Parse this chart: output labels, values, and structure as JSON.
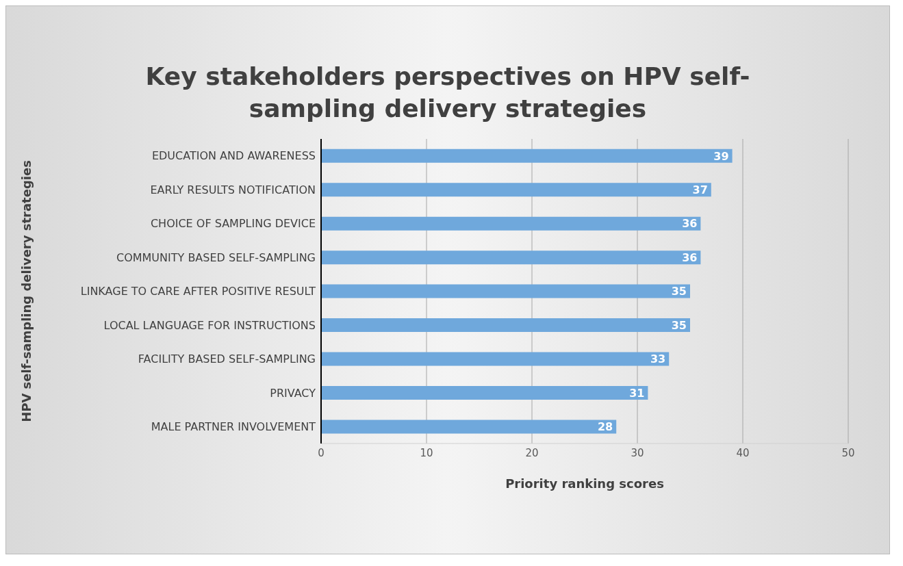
{
  "chart_data": {
    "type": "bar",
    "orientation": "horizontal",
    "title": "Key stakeholders perspectives on HPV self-sampling delivery strategies",
    "xlabel": "Priority ranking  scores",
    "ylabel": "HPV self-sampling delivery strategies",
    "categories": [
      "EDUCATION AND AWARENESS",
      "EARLY RESULTS NOTIFICATION",
      "CHOICE OF SAMPLING DEVICE",
      "COMMUNITY BASED SELF-SAMPLING",
      "LINKAGE TO CARE AFTER POSITIVE RESULT",
      "LOCAL LANGUAGE FOR INSTRUCTIONS",
      "FACILITY BASED SELF-SAMPLING",
      "PRIVACY",
      "MALE PARTNER INVOLVEMENT"
    ],
    "values": [
      39,
      37,
      36,
      36,
      35,
      35,
      33,
      31,
      28
    ],
    "color": "#6fa8dc",
    "xlim": [
      0,
      50
    ],
    "xticks": [
      0,
      10,
      20,
      30,
      40,
      50
    ],
    "grid": "x",
    "data_labels": true
  }
}
